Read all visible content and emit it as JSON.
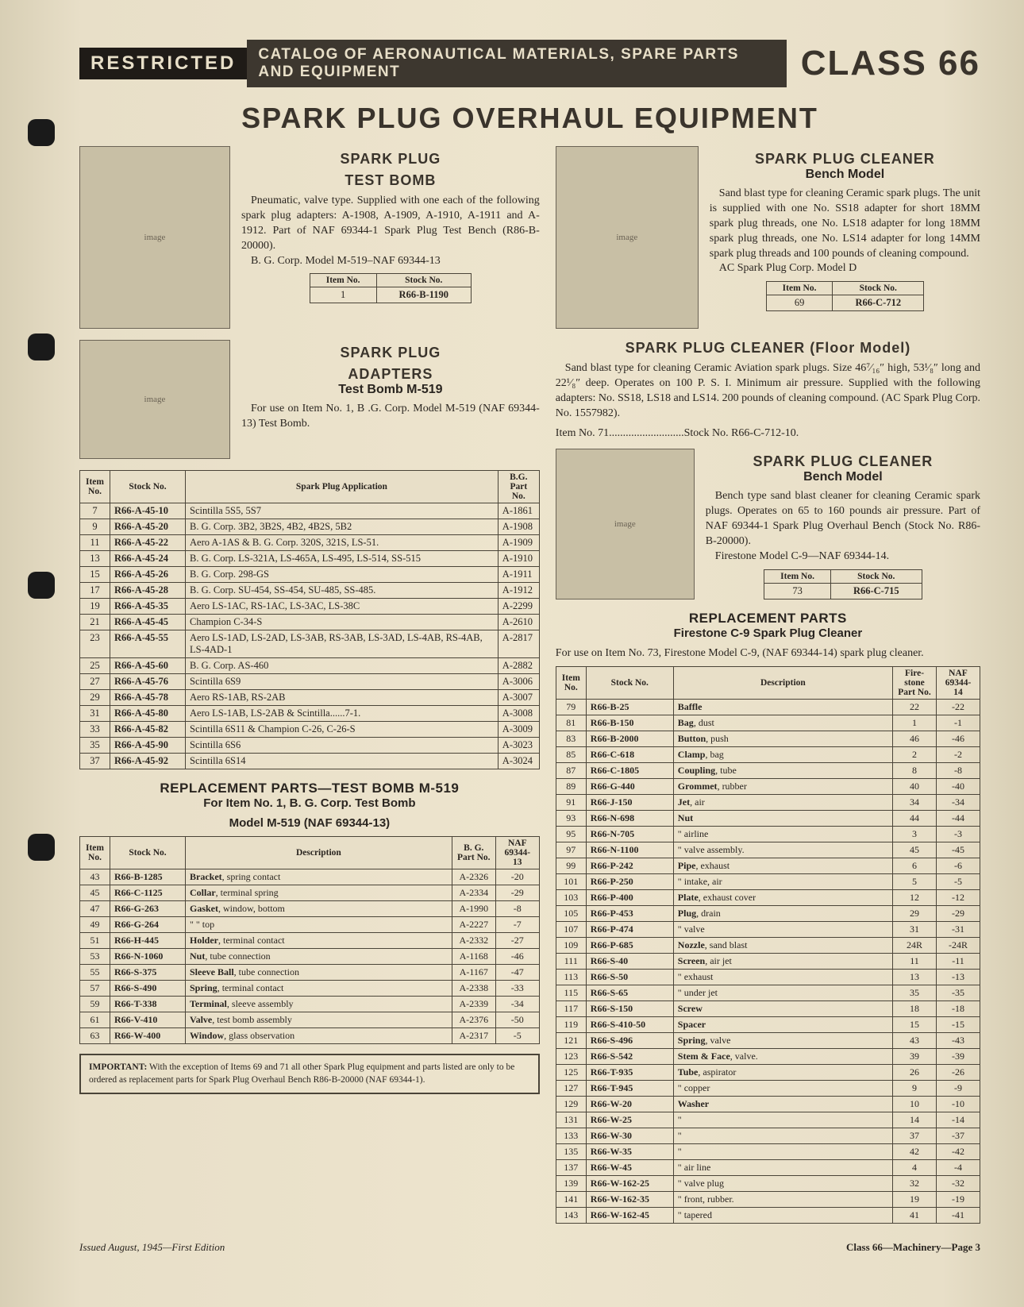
{
  "header": {
    "restricted": "RESTRICTED",
    "catalog": "CATALOG OF AERONAUTICAL MATERIALS, SPARE PARTS AND EQUIPMENT",
    "class": "CLASS 66"
  },
  "main_title": "SPARK PLUG OVERHAUL EQUIPMENT",
  "test_bomb": {
    "title": "SPARK PLUG",
    "subtitle": "TEST BOMB",
    "text": "Pneumatic, valve type. Supplied with one each of the following spark plug adapters: A-1908, A-1909, A-1910, A-1911 and A-1912. Part of NAF 69344-1 Spark Plug Test Bench (R86-B-20000).",
    "credit": "B. G. Corp. Model M-519–NAF 69344-13",
    "item_no": "1",
    "stock_no": "R66-B-1190"
  },
  "adapters": {
    "title": "SPARK PLUG",
    "title2": "ADAPTERS",
    "subtitle": "Test Bomb M-519",
    "text": "For use on Item No. 1, B .G. Corp. Model M-519 (NAF 69344-13) Test Bomb.",
    "headers": [
      "Item No.",
      "Stock No.",
      "Spark Plug Application",
      "B.G. Part No."
    ],
    "rows": [
      [
        "7",
        "R66-A-45-10",
        "Scintilla 5S5, 5S7",
        "A-1861"
      ],
      [
        "9",
        "R66-A-45-20",
        "B. G. Corp. 3B2, 3B2S, 4B2, 4B2S, 5B2",
        "A-1908"
      ],
      [
        "11",
        "R66-A-45-22",
        "Aero A-1AS & B. G. Corp. 320S, 321S, LS-51.",
        "A-1909"
      ],
      [
        "13",
        "R66-A-45-24",
        "B. G. Corp. LS-321A, LS-465A, LS-495, LS-514, SS-515",
        "A-1910"
      ],
      [
        "15",
        "R66-A-45-26",
        "B. G. Corp. 298-GS",
        "A-1911"
      ],
      [
        "17",
        "R66-A-45-28",
        "B. G. Corp. SU-454, SS-454, SU-485, SS-485.",
        "A-1912"
      ],
      [
        "19",
        "R66-A-45-35",
        "Aero LS-1AC, RS-1AC, LS-3AC, LS-38C",
        "A-2299"
      ],
      [
        "21",
        "R66-A-45-45",
        "Champion C-34-S",
        "A-2610"
      ],
      [
        "23",
        "R66-A-45-55",
        "Aero LS-1AD, LS-2AD, LS-3AB, RS-3AB, LS-3AD, LS-4AB, RS-4AB, LS-4AD-1",
        "A-2817"
      ],
      [
        "25",
        "R66-A-45-60",
        "B. G. Corp. AS-460",
        "A-2882"
      ],
      [
        "27",
        "R66-A-45-76",
        "Scintilla 6S9",
        "A-3006"
      ],
      [
        "29",
        "R66-A-45-78",
        "Aero RS-1AB, RS-2AB",
        "A-3007"
      ],
      [
        "31",
        "R66-A-45-80",
        "Aero LS-1AB, LS-2AB & Scintilla......7-1.",
        "A-3008"
      ],
      [
        "33",
        "R66-A-45-82",
        "Scintilla 6S11 & Champion C-26, C-26-S",
        "A-3009"
      ],
      [
        "35",
        "R66-A-45-90",
        "Scintilla 6S6",
        "A-3023"
      ],
      [
        "37",
        "R66-A-45-92",
        "Scintilla 6S14",
        "A-3024"
      ]
    ]
  },
  "m519_parts": {
    "title": "REPLACEMENT PARTS—TEST BOMB M-519",
    "sub1": "For Item No. 1, B. G. Corp. Test Bomb",
    "sub2": "Model M-519 (NAF 69344-13)",
    "headers": [
      "Item No.",
      "Stock No.",
      "Description",
      "B. G. Part No.",
      "NAF 69344-13"
    ],
    "rows": [
      [
        "43",
        "R66-B-1285",
        "Bracket, spring contact",
        "A-2326",
        "-20"
      ],
      [
        "45",
        "R66-C-1125",
        "Collar, terminal spring",
        "A-2334",
        "-29"
      ],
      [
        "47",
        "R66-G-263",
        "Gasket, window, bottom",
        "A-1990",
        "-8"
      ],
      [
        "49",
        "R66-G-264",
        "\"        \"        top",
        "A-2227",
        "-7"
      ],
      [
        "51",
        "R66-H-445",
        "Holder, terminal contact",
        "A-2332",
        "-27"
      ],
      [
        "53",
        "R66-N-1060",
        "Nut, tube connection",
        "A-1168",
        "-46"
      ],
      [
        "55",
        "R66-S-375",
        "Sleeve Ball, tube connection",
        "A-1167",
        "-47"
      ],
      [
        "57",
        "R66-S-490",
        "Spring, terminal contact",
        "A-2338",
        "-33"
      ],
      [
        "59",
        "R66-T-338",
        "Terminal, sleeve assembly",
        "A-2339",
        "-34"
      ],
      [
        "61",
        "R66-V-410",
        "Valve, test bomb assembly",
        "A-2376",
        "-50"
      ],
      [
        "63",
        "R66-W-400",
        "Window, glass observation",
        "A-2317",
        "-5"
      ]
    ]
  },
  "cleaner_bench_d": {
    "title": "SPARK PLUG CLEANER",
    "subtitle": "Bench Model",
    "text": "Sand blast type for cleaning Ceramic spark plugs. The unit is supplied with one No. SS18 adapter for short 18MM spark plug threads, one No. LS18 adapter for long 18MM spark plug threads, one No. LS14 adapter for long 14MM spark plug threads and 100 pounds of cleaning compound.",
    "credit": "AC Spark Plug Corp. Model D",
    "item_no": "69",
    "stock_no": "R66-C-712"
  },
  "cleaner_floor": {
    "title": "SPARK PLUG CLEANER (Floor Model)",
    "text": "Sand blast type for cleaning Ceramic Aviation spark plugs. Size 46⁷⁄₁₆″ high, 53¹⁄₈″ long and 22¹⁄₈″ deep. Operates on 100 P. S. I. Minimum air pressure. Supplied with the following adapters: No. SS18, LS18 and LS14. 200 pounds of cleaning compound. (AC Spark Plug Corp. No. 1557982).",
    "item_line": "Item No. 71...........................Stock No. R66-C-712-10."
  },
  "cleaner_bench_c9": {
    "title": "SPARK PLUG CLEANER",
    "subtitle": "Bench Model",
    "text": "Bench type sand blast cleaner for cleaning Ceramic spark plugs. Operates on 65 to 160 pounds air pressure. Part of NAF 69344-1 Spark Plug Overhaul Bench (Stock No. R86-B-20000).",
    "credit": "Firestone Model C-9—NAF 69344-14.",
    "item_no": "73",
    "stock_no": "R66-C-715"
  },
  "c9_parts": {
    "title": "REPLACEMENT PARTS",
    "subtitle": "Firestone C-9 Spark Plug Cleaner",
    "text": "For use on Item No. 73, Firestone Model C-9, (NAF 69344-14) spark plug cleaner.",
    "headers": [
      "Item No.",
      "Stock No.",
      "Description",
      "Fire-stone Part No.",
      "NAF 69344-14"
    ],
    "rows": [
      [
        "79",
        "R66-B-25",
        "Baffle",
        "22",
        "-22"
      ],
      [
        "81",
        "R66-B-150",
        "Bag, dust",
        "1",
        "-1"
      ],
      [
        "83",
        "R66-B-2000",
        "Button, push",
        "46",
        "-46"
      ],
      [
        "85",
        "R66-C-618",
        "Clamp, bag",
        "2",
        "-2"
      ],
      [
        "87",
        "R66-C-1805",
        "Coupling, tube",
        "8",
        "-8"
      ],
      [
        "89",
        "R66-G-440",
        "Grommet, rubber",
        "40",
        "-40"
      ],
      [
        "91",
        "R66-J-150",
        "Jet, air",
        "34",
        "-34"
      ],
      [
        "93",
        "R66-N-698",
        "Nut",
        "44",
        "-44"
      ],
      [
        "95",
        "R66-N-705",
        "\"    airline",
        "3",
        "-3"
      ],
      [
        "97",
        "R66-N-1100",
        "\"    valve assembly.",
        "45",
        "-45"
      ],
      [
        "99",
        "R66-P-242",
        "Pipe, exhaust",
        "6",
        "-6"
      ],
      [
        "101",
        "R66-P-250",
        "\"     intake, air",
        "5",
        "-5"
      ],
      [
        "103",
        "R66-P-400",
        "Plate, exhaust cover",
        "12",
        "-12"
      ],
      [
        "105",
        "R66-P-453",
        "Plug, drain",
        "29",
        "-29"
      ],
      [
        "107",
        "R66-P-474",
        "\"     valve",
        "31",
        "-31"
      ],
      [
        "109",
        "R66-P-685",
        "Nozzle, sand blast",
        "24R",
        "-24R"
      ],
      [
        "111",
        "R66-S-40",
        "Screen, air jet",
        "11",
        "-11"
      ],
      [
        "113",
        "R66-S-50",
        "\"        exhaust",
        "13",
        "-13"
      ],
      [
        "115",
        "R66-S-65",
        "\"        under jet",
        "35",
        "-35"
      ],
      [
        "117",
        "R66-S-150",
        "Screw",
        "18",
        "-18"
      ],
      [
        "119",
        "R66-S-410-50",
        "Spacer",
        "15",
        "-15"
      ],
      [
        "121",
        "R66-S-496",
        "Spring, valve",
        "43",
        "-43"
      ],
      [
        "123",
        "R66-S-542",
        "Stem & Face, valve.",
        "39",
        "-39"
      ],
      [
        "125",
        "R66-T-935",
        "Tube, aspirator",
        "26",
        "-26"
      ],
      [
        "127",
        "R66-T-945",
        "\"      copper",
        "9",
        "-9"
      ],
      [
        "129",
        "R66-W-20",
        "Washer",
        "10",
        "-10"
      ],
      [
        "131",
        "R66-W-25",
        "\"",
        "14",
        "-14"
      ],
      [
        "133",
        "R66-W-30",
        "\"",
        "37",
        "-37"
      ],
      [
        "135",
        "R66-W-35",
        "\"",
        "42",
        "-42"
      ],
      [
        "137",
        "R66-W-45",
        "\"       air line",
        "4",
        "-4"
      ],
      [
        "139",
        "R66-W-162-25",
        "\"       valve plug",
        "32",
        "-32"
      ],
      [
        "141",
        "R66-W-162-35",
        "\"       front, rubber.",
        "19",
        "-19"
      ],
      [
        "143",
        "R66-W-162-45",
        "\"       tapered",
        "41",
        "-41"
      ]
    ]
  },
  "important": "IMPORTANT: With the exception of Items 69 and 71 all other Spark Plug equipment and parts listed are only to be ordered as replacement parts for Spark Plug Overhaul Bench R86-B-20000 (NAF 69344-1).",
  "footer": {
    "left": "Issued August, 1945—First Edition",
    "right": "Class 66—Machinery—Page 3"
  },
  "labels": {
    "item_no": "Item No.",
    "stock_no": "Stock No."
  }
}
